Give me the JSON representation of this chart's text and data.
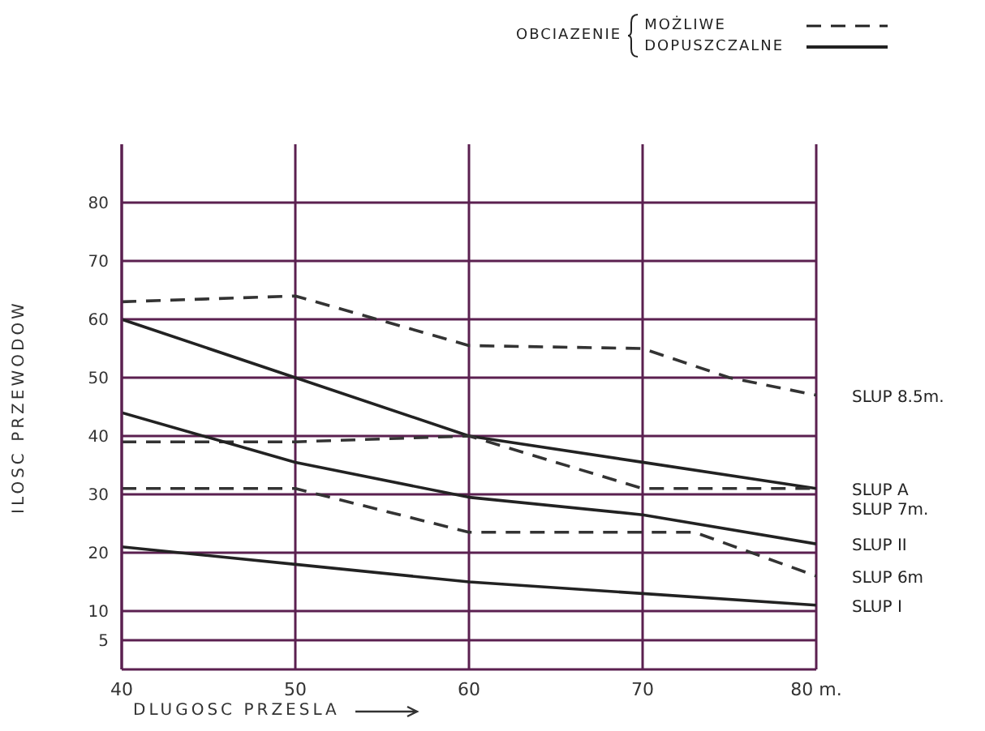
{
  "chart_data": {
    "type": "line",
    "legend_title": "OBCIAZENIE",
    "annotations": [
      "MOŻLIWE",
      "DOPUSZCZALNE"
    ],
    "xlabel": "DLUGOSC PRZESLA",
    "ylabel": "ILOSC PRZEWODOW",
    "xlim": [
      40,
      80
    ],
    "xticks": [
      40,
      50,
      60,
      70,
      {
        "value": 80,
        "label": "80 m."
      }
    ],
    "ylim": [
      0,
      90
    ],
    "yticks": [
      5,
      10,
      20,
      30,
      40,
      50,
      60,
      70,
      80
    ],
    "grid": true,
    "legend": "right",
    "marker": "none",
    "series": [
      {
        "name": "SLUP 8.5m.",
        "color": "#333333",
        "line_style": "dashed",
        "x": [
          40,
          50,
          60,
          70,
          75,
          80
        ],
        "values": [
          63,
          64,
          55.5,
          55,
          50,
          47
        ]
      },
      {
        "name": "SLUP A",
        "color": "#222222",
        "line_style": "solid",
        "x": [
          40,
          50,
          60,
          70,
          80
        ],
        "values": [
          60,
          50,
          40,
          35.5,
          31
        ]
      },
      {
        "name": "SLUP 7m.",
        "color": "#333333",
        "line_style": "dashed",
        "x": [
          40,
          50,
          60,
          70,
          80
        ],
        "values": [
          39,
          39,
          40,
          31,
          31
        ]
      },
      {
        "name": "SLUP II",
        "color": "#222222",
        "line_style": "solid",
        "x": [
          40,
          50,
          60,
          70,
          80
        ],
        "values": [
          44,
          35.5,
          29.5,
          26.5,
          21.5
        ]
      },
      {
        "name": "SLUP 6m",
        "color": "#333333",
        "line_style": "dashed",
        "x": [
          40,
          50,
          60,
          73,
          80
        ],
        "values": [
          31,
          31,
          23.5,
          23.5,
          16
        ]
      },
      {
        "name": "SLUP I",
        "color": "#222222",
        "line_style": "solid",
        "x": [
          40,
          50,
          60,
          70,
          80
        ],
        "values": [
          21,
          18,
          15,
          13,
          11
        ]
      }
    ]
  }
}
